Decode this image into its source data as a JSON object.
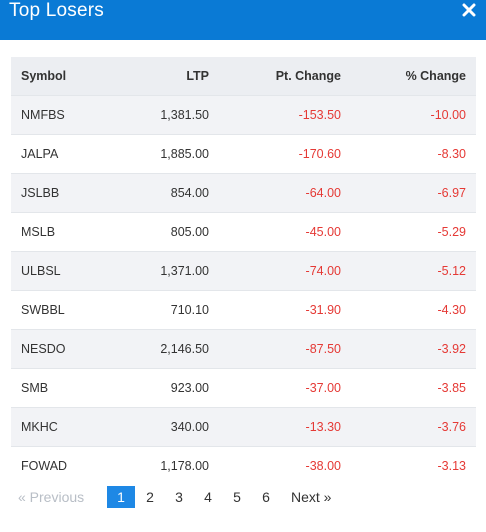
{
  "header": {
    "title": "Top Losers",
    "close_icon": "close-icon",
    "background": "#0a7ad5"
  },
  "table": {
    "columns": [
      "Symbol",
      "LTP",
      "Pt. Change",
      "% Change"
    ],
    "rows": [
      {
        "symbol": "NMFBS",
        "ltp": "1,381.50",
        "pt_change": "-153.50",
        "pct_change": "-10.00"
      },
      {
        "symbol": "JALPA",
        "ltp": "1,885.00",
        "pt_change": "-170.60",
        "pct_change": "-8.30"
      },
      {
        "symbol": "JSLBB",
        "ltp": "854.00",
        "pt_change": "-64.00",
        "pct_change": "-6.97"
      },
      {
        "symbol": "MSLB",
        "ltp": "805.00",
        "pt_change": "-45.00",
        "pct_change": "-5.29"
      },
      {
        "symbol": "ULBSL",
        "ltp": "1,371.00",
        "pt_change": "-74.00",
        "pct_change": "-5.12"
      },
      {
        "symbol": "SWBBL",
        "ltp": "710.10",
        "pt_change": "-31.90",
        "pct_change": "-4.30"
      },
      {
        "symbol": "NESDO",
        "ltp": "2,146.50",
        "pt_change": "-87.50",
        "pct_change": "-3.92"
      },
      {
        "symbol": "SMB",
        "ltp": "923.00",
        "pt_change": "-37.00",
        "pct_change": "-3.85"
      },
      {
        "symbol": "MKHC",
        "ltp": "340.00",
        "pt_change": "-13.30",
        "pct_change": "-3.76"
      },
      {
        "symbol": "FOWAD",
        "ltp": "1,178.00",
        "pt_change": "-38.00",
        "pct_change": "-3.13"
      }
    ],
    "negative_color": "#e53935"
  },
  "pagination": {
    "prev_label": "« Previous",
    "pages": [
      "1",
      "2",
      "3",
      "4",
      "5",
      "6"
    ],
    "active_page": "1",
    "next_label": "Next »"
  }
}
